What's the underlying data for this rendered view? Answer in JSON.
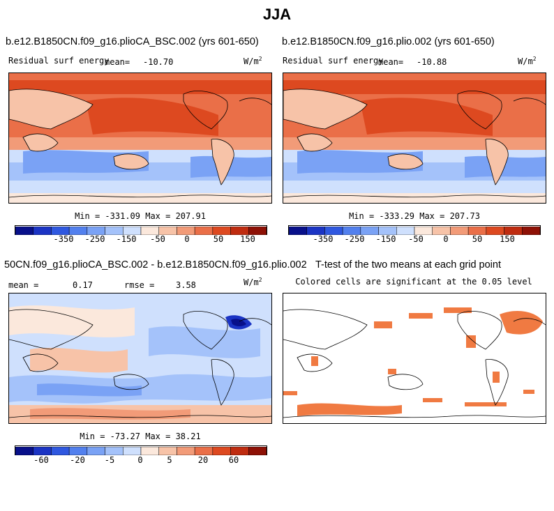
{
  "page_title": "JJA",
  "panels": [
    {
      "title": "b.e12.B1850CN.f09_g16.plioCA_BSC.002 (yrs 601-650)",
      "var_label": "Residual surf energy",
      "stat_label": "mean=",
      "stat_value": "-10.70",
      "units": "W/m",
      "units_sup": "2",
      "minmax": "Min = -331.09 Max = 207.91",
      "colorbar_ticks": [
        "-350",
        "-250",
        "-150",
        "-50",
        "0",
        "50",
        "150"
      ]
    },
    {
      "title": "b.e12.B1850CN.f09_g16.plio.002 (yrs 601-650)",
      "var_label": "Residual surf energy",
      "stat_label": "mean=",
      "stat_value": "-10.88",
      "units": "W/m",
      "units_sup": "2",
      "minmax": "Min = -333.29 Max = 207.73",
      "colorbar_ticks": [
        "-350",
        "-250",
        "-150",
        "-50",
        "0",
        "50",
        "150"
      ]
    },
    {
      "title": "50CN.f09_g16.plioCA_BSC.002 - b.e12.B1850CN.f09_g16.plio.002",
      "mean_label": "mean =",
      "mean_value": "0.17",
      "rmse_label": "rmse =",
      "rmse_value": "3.58",
      "units": "W/m",
      "units_sup": "2",
      "minmax": "Min = -73.27 Max = 38.21",
      "colorbar_ticks": [
        "-60",
        "-20",
        "-5",
        "0",
        "5",
        "20",
        "60"
      ]
    },
    {
      "title": "T-test of the two means at each grid point",
      "subtitle": "Colored cells are significant at the 0.05 level"
    }
  ],
  "colors": {
    "scale": [
      "#08108a",
      "#1b34c4",
      "#2f58e0",
      "#5280ee",
      "#7aa2f5",
      "#a4c2fa",
      "#cfe0fd",
      "#fbe8dc",
      "#f7c3a8",
      "#f29b78",
      "#ea6f48",
      "#dd4920",
      "#bf2c10",
      "#8e1106"
    ],
    "significant": "#f07a42",
    "land_line": "#000000"
  }
}
